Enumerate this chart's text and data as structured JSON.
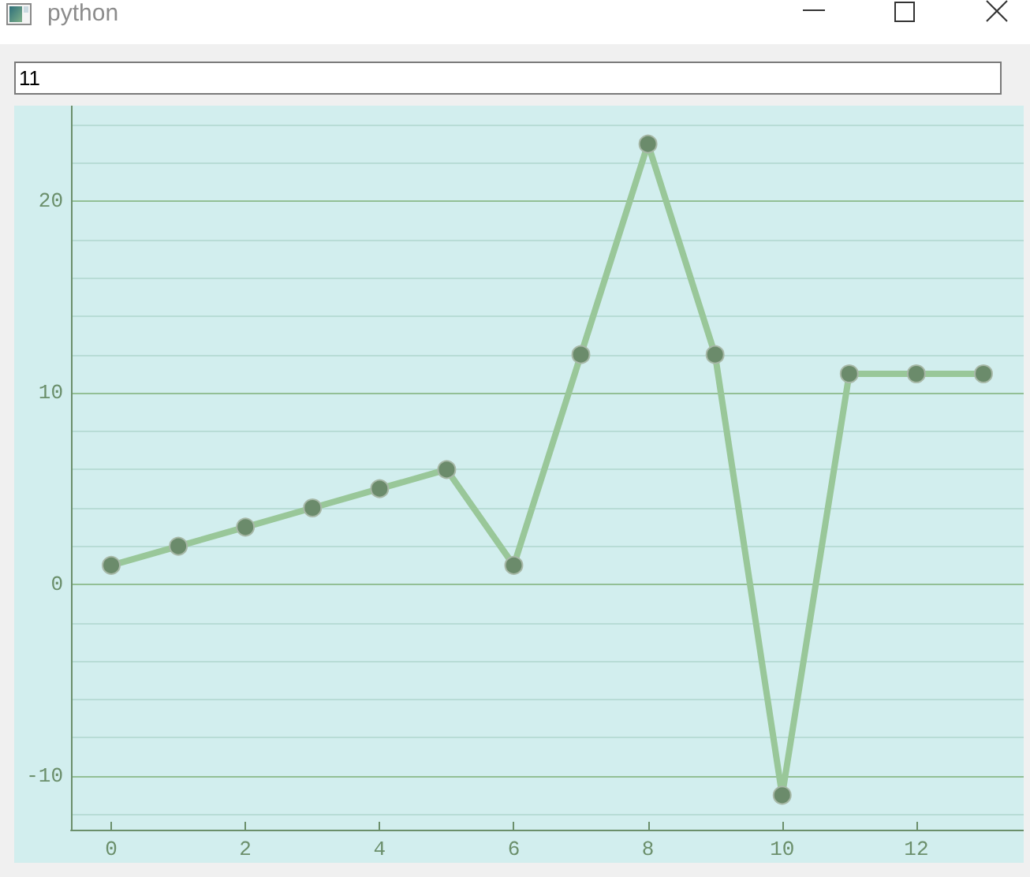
{
  "chart_data": {
    "type": "line",
    "title": "python",
    "annotations": [
      "11"
    ],
    "x": [
      0,
      1,
      2,
      3,
      4,
      5,
      6,
      7,
      8,
      9,
      10,
      11,
      12,
      13
    ],
    "series": [
      {
        "color": "#99c799",
        "values": [
          1,
          2,
          3,
          4,
          5,
          6,
          1,
          12,
          23,
          12,
          -11,
          11,
          11,
          11
        ]
      }
    ],
    "xlim": [
      -0.6,
      13.6
    ],
    "xticks": [
      0,
      2,
      4,
      6,
      8,
      10,
      12
    ],
    "ylim": [
      -12.8,
      25
    ],
    "yticks": [
      {
        "value": -12,
        "label": null
      },
      -10,
      {
        "value": -8,
        "label": null
      },
      {
        "value": -6,
        "label": null
      },
      {
        "value": -4,
        "label": null
      },
      {
        "value": -2,
        "label": null
      },
      0,
      {
        "value": 2,
        "label": null
      },
      {
        "value": 4,
        "label": null
      },
      {
        "value": 6,
        "label": null
      },
      {
        "value": 8,
        "label": null
      },
      10,
      {
        "value": 12,
        "label": null
      },
      {
        "value": 14,
        "label": null
      },
      {
        "value": 16,
        "label": null
      },
      {
        "value": 18,
        "label": null
      },
      20,
      {
        "value": 22,
        "label": null
      },
      {
        "value": 24,
        "label": null
      }
    ],
    "grid": "y",
    "marker": "circle",
    "line_style": "solid"
  }
}
